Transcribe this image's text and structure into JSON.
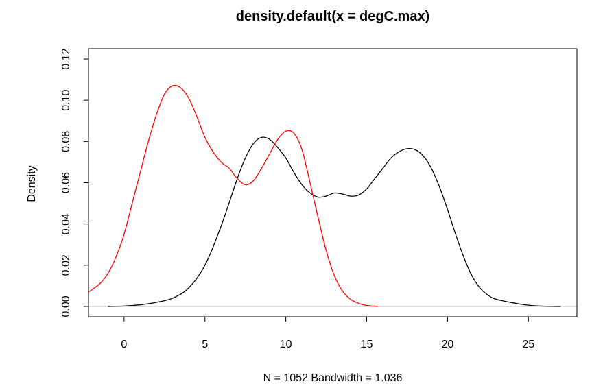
{
  "chart_data": {
    "type": "line",
    "title": "density.default(x = degC.max)",
    "xlabel": "N = 1052   Bandwidth = 1.036",
    "ylabel": "Density",
    "xlim": [
      -2.2,
      28.0
    ],
    "ylim": [
      -0.005,
      0.125
    ],
    "x_ticks": [
      0,
      5,
      10,
      15,
      20,
      25
    ],
    "y_ticks": [
      0.0,
      0.02,
      0.04,
      0.06,
      0.08,
      0.1,
      0.12
    ],
    "x_tick_labels": [
      "0",
      "5",
      "10",
      "15",
      "20",
      "25"
    ],
    "y_tick_labels": [
      "0.00",
      "0.02",
      "0.04",
      "0.06",
      "0.08",
      "0.10",
      "0.12"
    ],
    "zero_line": true,
    "zero_line_color": "#bebebe",
    "series": [
      {
        "color": "#000000",
        "points": [
          [
            -1.0,
            0.0
          ],
          [
            0.0,
            0.0002
          ],
          [
            1.0,
            0.0008
          ],
          [
            2.0,
            0.002
          ],
          [
            3.0,
            0.004
          ],
          [
            4.0,
            0.009
          ],
          [
            5.0,
            0.02
          ],
          [
            6.0,
            0.039
          ],
          [
            7.0,
            0.062
          ],
          [
            7.5,
            0.072
          ],
          [
            8.0,
            0.079
          ],
          [
            8.5,
            0.082
          ],
          [
            9.0,
            0.081
          ],
          [
            9.5,
            0.077
          ],
          [
            10.0,
            0.072
          ],
          [
            10.5,
            0.065
          ],
          [
            11.0,
            0.059
          ],
          [
            11.5,
            0.055
          ],
          [
            12.0,
            0.053
          ],
          [
            12.5,
            0.0535
          ],
          [
            13.0,
            0.055
          ],
          [
            13.5,
            0.0545
          ],
          [
            14.0,
            0.0535
          ],
          [
            14.5,
            0.054
          ],
          [
            15.0,
            0.057
          ],
          [
            15.5,
            0.062
          ],
          [
            16.0,
            0.067
          ],
          [
            16.5,
            0.072
          ],
          [
            17.0,
            0.075
          ],
          [
            17.5,
            0.0765
          ],
          [
            18.0,
            0.076
          ],
          [
            18.5,
            0.073
          ],
          [
            19.0,
            0.067
          ],
          [
            19.5,
            0.058
          ],
          [
            20.0,
            0.047
          ],
          [
            20.5,
            0.035
          ],
          [
            21.0,
            0.024
          ],
          [
            21.5,
            0.015
          ],
          [
            22.0,
            0.009
          ],
          [
            22.5,
            0.0055
          ],
          [
            23.0,
            0.0035
          ],
          [
            24.0,
            0.0018
          ],
          [
            25.0,
            0.0006
          ],
          [
            26.0,
            0.0001
          ],
          [
            27.0,
            0.0
          ]
        ]
      },
      {
        "color": "#ff0000",
        "points": [
          [
            -2.2,
            0.007
          ],
          [
            -1.5,
            0.011
          ],
          [
            -1.0,
            0.016
          ],
          [
            -0.5,
            0.024
          ],
          [
            0.0,
            0.035
          ],
          [
            0.5,
            0.05
          ],
          [
            1.0,
            0.065
          ],
          [
            1.5,
            0.08
          ],
          [
            2.0,
            0.093
          ],
          [
            2.5,
            0.103
          ],
          [
            3.0,
            0.107
          ],
          [
            3.5,
            0.106
          ],
          [
            4.0,
            0.101
          ],
          [
            4.5,
            0.092
          ],
          [
            5.0,
            0.082
          ],
          [
            5.5,
            0.075
          ],
          [
            6.0,
            0.07
          ],
          [
            6.5,
            0.067
          ],
          [
            7.0,
            0.062
          ],
          [
            7.5,
            0.059
          ],
          [
            8.0,
            0.061
          ],
          [
            8.5,
            0.067
          ],
          [
            9.0,
            0.074
          ],
          [
            9.5,
            0.081
          ],
          [
            10.0,
            0.085
          ],
          [
            10.5,
            0.084
          ],
          [
            11.0,
            0.076
          ],
          [
            11.5,
            0.06
          ],
          [
            12.0,
            0.043
          ],
          [
            12.5,
            0.027
          ],
          [
            13.0,
            0.015
          ],
          [
            13.5,
            0.0075
          ],
          [
            14.0,
            0.0035
          ],
          [
            14.5,
            0.0015
          ],
          [
            15.0,
            0.0005
          ],
          [
            15.7,
            0.0
          ]
        ]
      }
    ]
  }
}
